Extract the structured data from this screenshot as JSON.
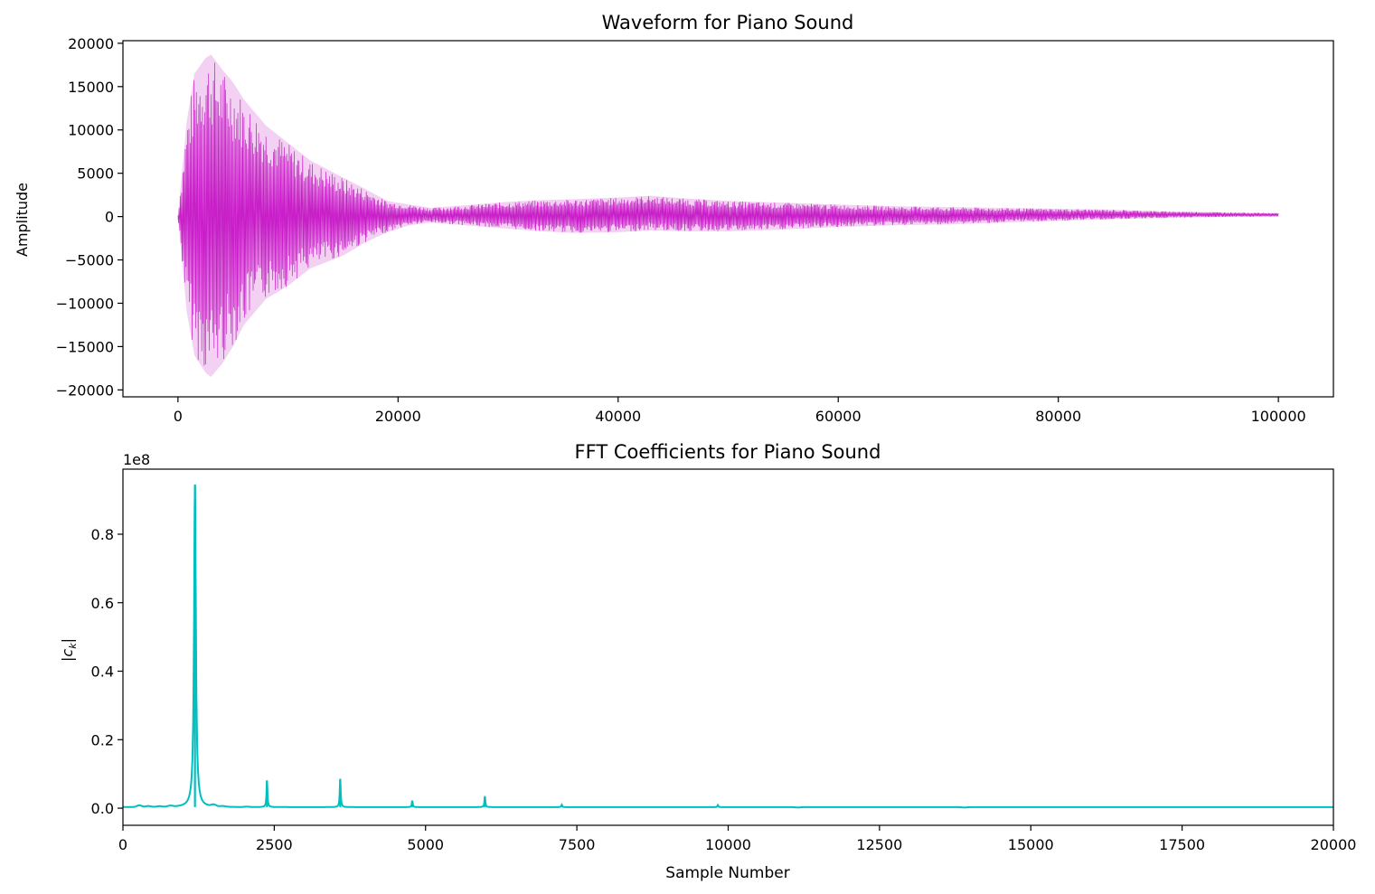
{
  "chart_data": [
    {
      "type": "line",
      "title": "Waveform for Piano Sound",
      "xlabel": "",
      "ylabel": "Amplitude",
      "xlim": [
        -5000,
        105000
      ],
      "ylim": [
        -20800,
        20300
      ],
      "xticks": [
        0,
        20000,
        40000,
        60000,
        80000,
        100000
      ],
      "yticks": [
        -20000,
        -15000,
        -10000,
        -5000,
        0,
        5000,
        10000,
        15000,
        20000
      ],
      "xtick_labels": [
        "0",
        "20000",
        "40000",
        "60000",
        "80000",
        "100000"
      ],
      "ytick_labels": [
        "−20000",
        "−15000",
        "−10000",
        "−5000",
        "0",
        "5000",
        "10000",
        "15000",
        "20000"
      ],
      "color": "#bf00bf",
      "series": [
        {
          "envelope_x": [
            0,
            800,
            1500,
            2500,
            3000,
            4000,
            5000,
            6000,
            8000,
            10000,
            12000,
            15000,
            17000,
            19000,
            21000,
            23000,
            25000,
            27000,
            30000,
            33000,
            36000,
            40000,
            43000,
            46000,
            50000,
            55000,
            60000,
            65000,
            70000,
            75000,
            80000,
            85000,
            90000,
            95000,
            100000
          ],
          "envelope_upper": [
            200,
            11000,
            16500,
            18300,
            18700,
            17000,
            15500,
            13500,
            10500,
            8500,
            6500,
            4500,
            3200,
            1800,
            1400,
            1000,
            1200,
            1400,
            1700,
            1900,
            2000,
            2200,
            2400,
            2100,
            1800,
            1600,
            1400,
            1200,
            1100,
            1000,
            900,
            800,
            600,
            500,
            400
          ],
          "envelope_lower": [
            -200,
            -11000,
            -16000,
            -18000,
            -18500,
            -17000,
            -15000,
            -12500,
            -9500,
            -8000,
            -6000,
            -4500,
            -3000,
            -1800,
            -1000,
            -700,
            -900,
            -1100,
            -1400,
            -1700,
            -1900,
            -1800,
            -1600,
            -1700,
            -1700,
            -1500,
            -1200,
            -1000,
            -900,
            -700,
            -500,
            -300,
            -150,
            -50,
            0
          ]
        }
      ]
    },
    {
      "type": "line",
      "title": "FFT Coefficients for Piano Sound",
      "xlabel": "Sample Number",
      "ylabel": "|c_k|",
      "offset_label": "1e8",
      "xlim": [
        0,
        20000
      ],
      "ylim": [
        -0.05,
        0.99
      ],
      "xticks": [
        0,
        2500,
        5000,
        7500,
        10000,
        12500,
        15000,
        17500,
        20000
      ],
      "yticks": [
        0.0,
        0.2,
        0.4,
        0.6,
        0.8
      ],
      "xtick_labels": [
        "0",
        "2500",
        "5000",
        "7500",
        "10000",
        "12500",
        "15000",
        "17500",
        "20000"
      ],
      "ytick_labels": [
        "0.0",
        "0.2",
        "0.4",
        "0.6",
        "0.8"
      ],
      "color": "#00bfbf",
      "series": [
        {
          "peaks": [
            {
              "x": 1190,
              "y": 0.942
            },
            {
              "x": 2380,
              "y": 0.078
            },
            {
              "x": 3590,
              "y": 0.083
            },
            {
              "x": 4780,
              "y": 0.019
            },
            {
              "x": 5980,
              "y": 0.032
            },
            {
              "x": 7250,
              "y": 0.007
            },
            {
              "x": 9830,
              "y": 0.006
            }
          ],
          "baseline": 0.003
        }
      ]
    }
  ]
}
